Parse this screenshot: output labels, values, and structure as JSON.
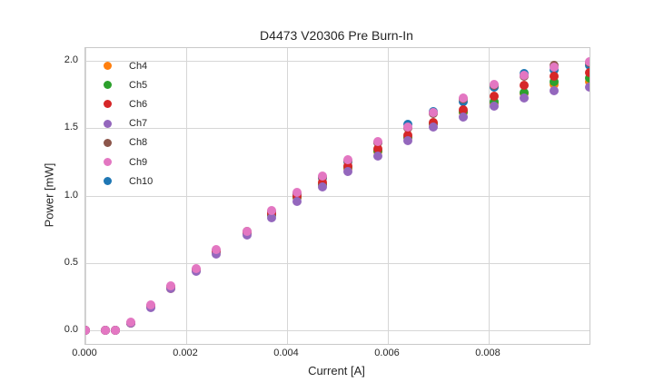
{
  "colors": {
    "background": "#ffffff",
    "grid": "#d6d6d6",
    "spine": "#c9c9c9",
    "text": "#262626"
  },
  "chart_data": {
    "type": "scatter",
    "title": "D4473 V20306 Pre Burn-In",
    "xlabel": "Current [A]",
    "ylabel": "Power [mW]",
    "xlim": [
      0,
      0.01
    ],
    "ylim": [
      -0.1,
      2.1
    ],
    "grid": true,
    "legend_position": "upper-left",
    "legend_frame": false,
    "marker": "circle",
    "xticks": {
      "values": [
        0,
        0.002,
        0.004,
        0.006,
        0.008
      ],
      "labels": [
        "0.000",
        "0.002",
        "0.004",
        "0.006",
        "0.008"
      ]
    },
    "yticks": {
      "values": [
        0,
        0.5,
        1.0,
        1.5,
        2.0
      ],
      "labels": [
        "0.0",
        "0.5",
        "1.0",
        "1.5",
        "2.0"
      ]
    },
    "x": [
      0.0,
      0.0004,
      0.0006,
      0.0009,
      0.0013,
      0.0017,
      0.0022,
      0.0026,
      0.0032,
      0.0037,
      0.0042,
      0.0047,
      0.0052,
      0.0058,
      0.0064,
      0.0069,
      0.0075,
      0.0081,
      0.0087,
      0.0093,
      0.01
    ],
    "series": [
      {
        "name": "Ch4",
        "color": "#ff7f0e",
        "values": [
          0,
          0,
          0,
          0.054,
          0.175,
          0.315,
          0.445,
          0.58,
          0.72,
          0.855,
          0.985,
          1.08,
          1.205,
          1.33,
          1.43,
          1.53,
          1.62,
          1.69,
          1.76,
          1.83,
          1.85
        ]
      },
      {
        "name": "Ch5",
        "color": "#2ca02c",
        "values": [
          0,
          0,
          0,
          0.055,
          0.18,
          0.318,
          0.448,
          0.585,
          0.725,
          0.86,
          0.99,
          1.09,
          1.215,
          1.34,
          1.44,
          1.54,
          1.63,
          1.7,
          1.77,
          1.85,
          1.88
        ]
      },
      {
        "name": "Ch6",
        "color": "#d62728",
        "values": [
          0,
          0,
          0,
          0.056,
          0.183,
          0.322,
          0.452,
          0.59,
          0.73,
          0.87,
          1.0,
          1.1,
          1.225,
          1.35,
          1.45,
          1.55,
          1.64,
          1.74,
          1.82,
          1.89,
          1.92
        ]
      },
      {
        "name": "Ch7",
        "color": "#9467bd",
        "values": [
          0,
          0,
          0,
          0.052,
          0.17,
          0.31,
          0.44,
          0.57,
          0.71,
          0.835,
          0.96,
          1.07,
          1.18,
          1.3,
          1.41,
          1.51,
          1.59,
          1.665,
          1.73,
          1.78,
          1.81
        ]
      },
      {
        "name": "Ch8",
        "color": "#8c564b",
        "values": [
          0,
          0,
          0,
          0.058,
          0.186,
          0.327,
          0.456,
          0.596,
          0.736,
          0.886,
          1.02,
          1.142,
          1.262,
          1.398,
          1.505,
          1.612,
          1.722,
          1.822,
          1.892,
          1.97,
          1.99
        ]
      },
      {
        "name": "Ch9",
        "color": "#e377c2",
        "values": [
          0,
          0,
          0,
          0.06,
          0.19,
          0.33,
          0.46,
          0.6,
          0.74,
          0.893,
          1.03,
          1.15,
          1.27,
          1.405,
          1.51,
          1.62,
          1.73,
          1.83,
          1.9,
          1.955,
          2.0
        ]
      },
      {
        "name": "Ch10",
        "color": "#1f77b4",
        "values": [
          0,
          0,
          0,
          0.057,
          0.184,
          0.324,
          0.454,
          0.592,
          0.732,
          0.88,
          1.015,
          1.138,
          1.258,
          1.395,
          1.532,
          1.63,
          1.7,
          1.81,
          1.912,
          1.94,
          1.97
        ]
      }
    ],
    "draw_order": [
      "Ch4",
      "Ch5",
      "Ch10",
      "Ch8",
      "Ch6",
      "Ch7",
      "Ch9"
    ]
  }
}
